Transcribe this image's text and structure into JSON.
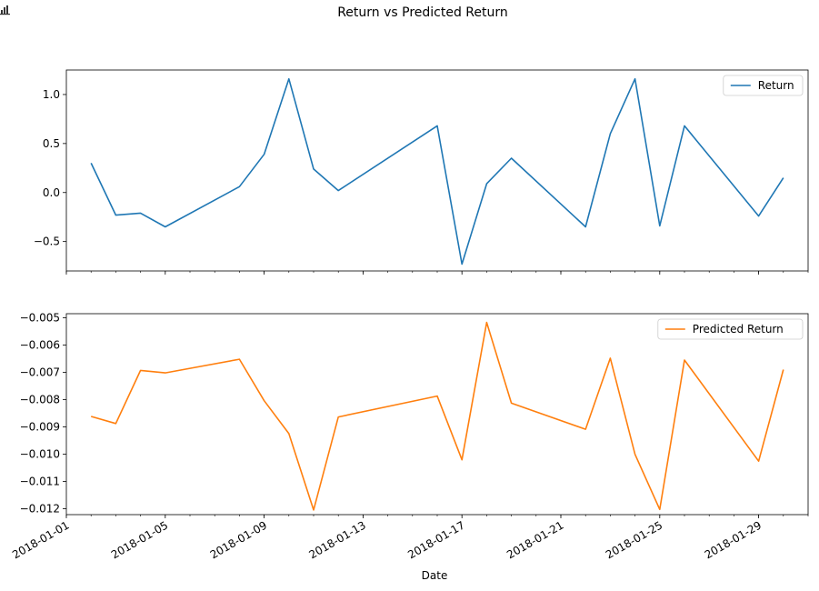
{
  "chart_data": {
    "type": "line",
    "title": "Return vs Predicted Return",
    "xlabel": "Date",
    "x": [
      "2018-01-02",
      "2018-01-03",
      "2018-01-04",
      "2018-01-05",
      "2018-01-08",
      "2018-01-09",
      "2018-01-10",
      "2018-01-11",
      "2018-01-12",
      "2018-01-16",
      "2018-01-17",
      "2018-01-18",
      "2018-01-19",
      "2018-01-22",
      "2018-01-23",
      "2018-01-24",
      "2018-01-25",
      "2018-01-26",
      "2018-01-29",
      "2018-01-30"
    ],
    "xlim": [
      "2018-01-01",
      "2018-01-31"
    ],
    "x_ticks": [
      "2018-01-01",
      "2018-01-05",
      "2018-01-09",
      "2018-01-13",
      "2018-01-17",
      "2018-01-21",
      "2018-01-25",
      "2018-01-29"
    ],
    "subplots": [
      {
        "series": [
          {
            "name": "Return",
            "color": "#1f77b4",
            "values": [
              0.3,
              -0.23,
              -0.21,
              -0.35,
              0.06,
              0.39,
              1.16,
              0.24,
              0.02,
              0.68,
              -0.73,
              0.09,
              0.35,
              -0.35,
              0.6,
              1.16,
              -0.34,
              0.68,
              -0.24,
              0.15
            ]
          }
        ],
        "ylim": [
          -0.8,
          1.25
        ],
        "y_ticks": [
          1.0,
          0.5,
          0.0,
          -0.5
        ],
        "y_tick_labels": [
          "1.0",
          "0.5",
          "0.0",
          "−0.5"
        ],
        "legend": "top-right"
      },
      {
        "series": [
          {
            "name": "Predicted Return",
            "color": "#ff7f0e",
            "values": [
              -0.00862,
              -0.00888,
              -0.00693,
              -0.00702,
              -0.00652,
              -0.00804,
              -0.00925,
              -0.01205,
              -0.00864,
              -0.00787,
              -0.01021,
              -0.00517,
              -0.00813,
              -0.00909,
              -0.00648,
              -0.01001,
              -0.01203,
              -0.00655,
              -0.01026,
              -0.0069
            ]
          }
        ],
        "ylim": [
          -0.01222,
          -0.00485
        ],
        "y_ticks": [
          -0.005,
          -0.006,
          -0.007,
          -0.008,
          -0.009,
          -0.01,
          -0.011,
          -0.012
        ],
        "y_tick_labels": [
          "−0.005",
          "−0.006",
          "−0.007",
          "−0.008",
          "−0.009",
          "−0.010",
          "−0.011",
          "−0.012"
        ],
        "legend": "top-right"
      }
    ],
    "grid": false
  },
  "toolbar": {
    "icon": "bar-chart-icon"
  }
}
